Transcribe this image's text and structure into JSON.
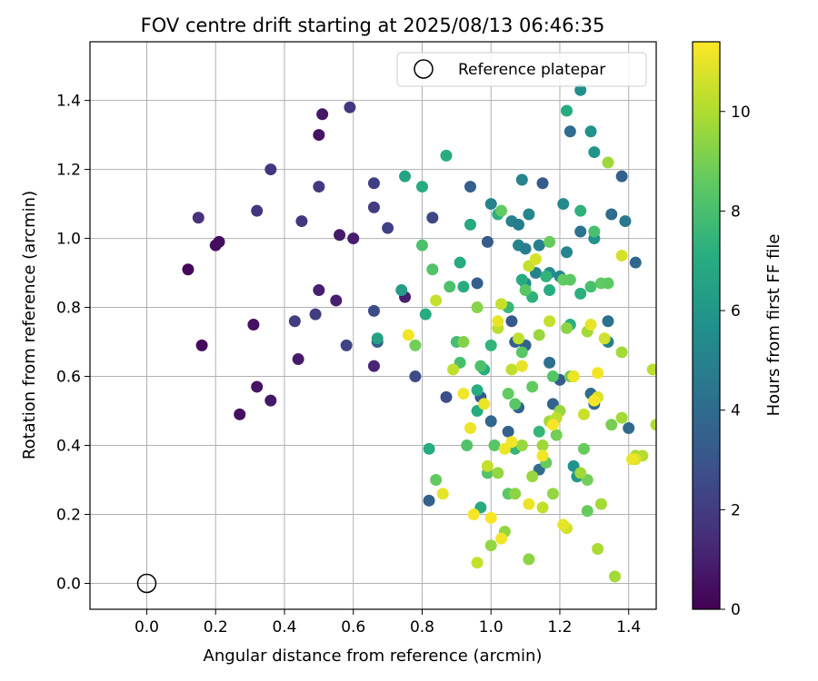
{
  "chart_data": {
    "type": "scatter",
    "title": "FOV centre drift starting at 2025/08/13 06:46:35",
    "xlabel": "Angular distance from reference (arcmin)",
    "ylabel": "Rotation from reference (arcmin)",
    "xlim": [
      -0.165,
      1.48
    ],
    "ylim": [
      -0.075,
      1.57
    ],
    "x_ticks": [
      0.0,
      0.2,
      0.4,
      0.6,
      0.8,
      1.0,
      1.2,
      1.4
    ],
    "x_tick_labels": [
      "0.0",
      "0.2",
      "0.4",
      "0.6",
      "0.8",
      "1.0",
      "1.2",
      "1.4"
    ],
    "y_ticks": [
      0.0,
      0.2,
      0.4,
      0.6,
      0.8,
      1.0,
      1.2,
      1.4
    ],
    "y_tick_labels": [
      "0.0",
      "0.2",
      "0.4",
      "0.6",
      "0.8",
      "1.0",
      "1.2",
      "1.4"
    ],
    "grid": true,
    "legend": {
      "placement": "upper-right",
      "entries": [
        "Reference platepar"
      ]
    },
    "reference_point": {
      "x": 0.0,
      "y": 0.0
    },
    "colorbar": {
      "label": "Hours from first FF file",
      "colormap": "viridis",
      "range": [
        0,
        11.4
      ],
      "ticks": [
        0,
        2,
        4,
        6,
        8,
        10
      ],
      "tick_labels": [
        "0",
        "2",
        "4",
        "6",
        "8",
        "10"
      ]
    },
    "points": [
      [
        0.12,
        0.91,
        0.2
      ],
      [
        0.16,
        0.69,
        0.3
      ],
      [
        0.2,
        0.98,
        0.4
      ],
      [
        0.21,
        0.99,
        0.4
      ],
      [
        0.27,
        0.49,
        0.5
      ],
      [
        0.31,
        0.75,
        0.5
      ],
      [
        0.32,
        0.57,
        0.6
      ],
      [
        0.36,
        0.53,
        0.7
      ],
      [
        0.44,
        0.65,
        0.8
      ],
      [
        0.5,
        1.3,
        0.6
      ],
      [
        0.51,
        1.36,
        0.7
      ],
      [
        0.56,
        1.01,
        0.8
      ],
      [
        0.6,
        1.0,
        0.9
      ],
      [
        0.5,
        0.85,
        1.0
      ],
      [
        0.55,
        0.82,
        1.0
      ],
      [
        0.66,
        0.63,
        1.2
      ],
      [
        0.75,
        0.83,
        1.0
      ],
      [
        0.15,
        1.06,
        1.6
      ],
      [
        0.32,
        1.08,
        1.7
      ],
      [
        0.36,
        1.2,
        1.8
      ],
      [
        0.45,
        1.05,
        1.8
      ],
      [
        0.5,
        1.15,
        1.9
      ],
      [
        0.59,
        1.38,
        1.8
      ],
      [
        0.43,
        0.76,
        2.0
      ],
      [
        0.49,
        0.78,
        2.0
      ],
      [
        0.66,
        1.16,
        2.1
      ],
      [
        0.66,
        1.09,
        2.0
      ],
      [
        0.7,
        1.03,
        2.2
      ],
      [
        0.58,
        0.69,
        2.3
      ],
      [
        0.66,
        0.79,
        2.6
      ],
      [
        0.78,
        0.6,
        2.6
      ],
      [
        0.83,
        1.06,
        2.4
      ],
      [
        0.87,
        0.54,
        2.7
      ],
      [
        0.67,
        0.7,
        3.3
      ],
      [
        0.82,
        0.24,
        3.5
      ],
      [
        0.94,
        1.15,
        3.4
      ],
      [
        0.96,
        0.87,
        3.4
      ],
      [
        0.97,
        0.54,
        3.2
      ],
      [
        0.99,
        0.99,
        3.3
      ],
      [
        1.0,
        0.47,
        3.8
      ],
      [
        1.05,
        0.44,
        3.5
      ],
      [
        1.06,
        0.76,
        3.2
      ],
      [
        1.07,
        0.7,
        3.5
      ],
      [
        1.08,
        0.51,
        3.6
      ],
      [
        1.1,
        0.69,
        3.6
      ],
      [
        1.14,
        0.33,
        4.0
      ],
      [
        1.15,
        1.16,
        3.3
      ],
      [
        1.17,
        0.64,
        4.2
      ],
      [
        1.18,
        0.52,
        3.7
      ],
      [
        1.2,
        0.59,
        3.2
      ],
      [
        1.23,
        1.31,
        4.0
      ],
      [
        1.26,
        1.02,
        4.3
      ],
      [
        1.29,
        0.55,
        4.0
      ],
      [
        1.3,
        0.52,
        4.0
      ],
      [
        1.34,
        0.76,
        4.2
      ],
      [
        1.35,
        1.07,
        4.0
      ],
      [
        1.38,
        1.18,
        3.5
      ],
      [
        1.39,
        1.05,
        4.5
      ],
      [
        1.4,
        0.45,
        3.9
      ],
      [
        1.42,
        0.93,
        3.8
      ],
      [
        1.34,
        0.7,
        4.9
      ],
      [
        1.0,
        1.1,
        5.0
      ],
      [
        1.06,
        1.05,
        5.0
      ],
      [
        1.08,
        1.04,
        4.8
      ],
      [
        1.09,
        1.17,
        5.1
      ],
      [
        1.11,
        1.07,
        5.2
      ],
      [
        1.08,
        0.98,
        5.1
      ],
      [
        1.1,
        0.97,
        4.8
      ],
      [
        1.1,
        0.87,
        5.5
      ],
      [
        1.13,
        0.9,
        5.0
      ],
      [
        1.14,
        0.98,
        4.9
      ],
      [
        1.17,
        0.9,
        5.5
      ],
      [
        1.2,
        0.89,
        5.3
      ],
      [
        1.21,
        1.1,
        5.3
      ],
      [
        1.22,
        0.96,
        5.2
      ],
      [
        1.26,
        1.43,
        5.6
      ],
      [
        1.29,
        1.31,
        5.8
      ],
      [
        1.3,
        1.25,
        5.9
      ],
      [
        1.3,
        1.0,
        5.8
      ],
      [
        1.24,
        0.34,
        5.8
      ],
      [
        1.25,
        0.31,
        6.0
      ],
      [
        0.74,
        0.85,
        6.3
      ],
      [
        0.67,
        0.71,
        6.5
      ],
      [
        0.75,
        1.18,
        6.6
      ],
      [
        0.8,
        1.15,
        7.0
      ],
      [
        0.87,
        1.24,
        7.1
      ],
      [
        0.81,
        0.78,
        7.0
      ],
      [
        0.82,
        0.39,
        7.0
      ],
      [
        0.91,
        0.93,
        6.9
      ],
      [
        0.92,
        0.86,
        7.0
      ],
      [
        0.94,
        1.04,
        6.9
      ],
      [
        0.96,
        0.56,
        7.0
      ],
      [
        0.96,
        0.5,
        7.0
      ],
      [
        0.97,
        0.22,
        7.0
      ],
      [
        0.98,
        0.62,
        7.1
      ],
      [
        1.0,
        0.69,
        7.4
      ],
      [
        1.02,
        1.07,
        7.2
      ],
      [
        1.05,
        0.8,
        7.6
      ],
      [
        1.07,
        0.39,
        7.5
      ],
      [
        1.09,
        0.88,
        7.0
      ],
      [
        1.12,
        0.83,
        7.3
      ],
      [
        1.14,
        0.44,
        7.5
      ],
      [
        1.16,
        0.89,
        7.4
      ],
      [
        1.17,
        0.85,
        7.1
      ],
      [
        1.22,
        1.37,
        7.0
      ],
      [
        1.23,
        0.75,
        7.1
      ],
      [
        1.26,
        0.84,
        7.2
      ],
      [
        1.26,
        1.08,
        7.3
      ],
      [
        1.29,
        0.86,
        8.0
      ],
      [
        1.3,
        1.02,
        8.0
      ],
      [
        0.8,
        0.98,
        8.1
      ],
      [
        0.83,
        0.91,
        8.2
      ],
      [
        0.88,
        0.86,
        8.1
      ],
      [
        0.9,
        0.7,
        7.9
      ],
      [
        0.91,
        0.64,
        8.0
      ],
      [
        0.93,
        0.4,
        8.2
      ],
      [
        0.97,
        0.63,
        8.1
      ],
      [
        0.99,
        0.32,
        8.2
      ],
      [
        1.01,
        0.4,
        8.4
      ],
      [
        1.03,
        1.08,
        8.6
      ],
      [
        1.05,
        0.26,
        8.5
      ],
      [
        1.05,
        0.55,
        8.6
      ],
      [
        1.07,
        0.52,
        8.4
      ],
      [
        1.09,
        0.67,
        8.4
      ],
      [
        1.1,
        0.85,
        8.4
      ],
      [
        1.12,
        0.57,
        8.6
      ],
      [
        1.16,
        0.35,
        8.7
      ],
      [
        1.17,
        0.99,
        8.7
      ],
      [
        1.18,
        0.6,
        8.3
      ],
      [
        1.19,
        0.43,
        8.9
      ],
      [
        1.21,
        0.88,
        8.6
      ],
      [
        1.23,
        0.88,
        8.5
      ],
      [
        1.23,
        0.6,
        8.8
      ],
      [
        1.27,
        0.39,
        8.7
      ],
      [
        1.28,
        0.3,
        8.9
      ],
      [
        1.28,
        0.21,
        8.7
      ],
      [
        1.32,
        0.87,
        8.6
      ],
      [
        1.34,
        0.87,
        8.5
      ],
      [
        1.35,
        0.46,
        9.0
      ],
      [
        0.78,
        0.69,
        8.9
      ],
      [
        0.84,
        0.3,
        8.6
      ],
      [
        0.92,
        0.7,
        9.2
      ],
      [
        0.96,
        0.8,
        9.3
      ],
      [
        1.0,
        0.11,
        9.5
      ],
      [
        1.02,
        0.32,
        9.5
      ],
      [
        1.04,
        0.15,
        9.5
      ],
      [
        1.07,
        0.26,
        9.4
      ],
      [
        1.09,
        0.4,
        9.6
      ],
      [
        1.11,
        0.07,
        9.4
      ],
      [
        1.12,
        0.31,
        9.6
      ],
      [
        1.14,
        0.72,
        9.6
      ],
      [
        1.15,
        0.4,
        9.7
      ],
      [
        1.17,
        0.47,
        9.8
      ],
      [
        1.18,
        0.26,
        9.5
      ],
      [
        1.2,
        0.5,
        9.6
      ],
      [
        1.22,
        0.74,
        9.4
      ],
      [
        1.24,
        0.6,
        9.6
      ],
      [
        1.26,
        0.32,
        9.7
      ],
      [
        1.28,
        0.73,
        9.8
      ],
      [
        1.31,
        0.1,
        9.9
      ],
      [
        1.32,
        0.23,
        9.8
      ],
      [
        1.34,
        1.22,
        9.7
      ],
      [
        1.36,
        0.02,
        9.8
      ],
      [
        1.38,
        0.48,
        9.8
      ],
      [
        1.38,
        0.67,
        9.8
      ],
      [
        1.42,
        0.37,
        9.9
      ],
      [
        1.44,
        0.37,
        10.1
      ],
      [
        1.47,
        0.62,
        10.2
      ],
      [
        1.48,
        0.46,
        10.0
      ],
      [
        0.84,
        0.82,
        10.4
      ],
      [
        0.89,
        0.62,
        10.3
      ],
      [
        0.96,
        0.06,
        10.4
      ],
      [
        0.99,
        0.34,
        10.4
      ],
      [
        1.02,
        0.74,
        10.2
      ],
      [
        1.03,
        0.81,
        10.4
      ],
      [
        1.06,
        0.62,
        10.3
      ],
      [
        1.08,
        0.71,
        10.3
      ],
      [
        1.11,
        0.92,
        10.4
      ],
      [
        1.13,
        0.94,
        10.7
      ],
      [
        1.15,
        0.22,
        10.3
      ],
      [
        1.17,
        0.76,
        10.4
      ],
      [
        1.19,
        0.48,
        10.3
      ],
      [
        1.22,
        0.16,
        10.6
      ],
      [
        1.27,
        0.49,
        10.5
      ],
      [
        1.31,
        0.54,
        10.8
      ],
      [
        1.33,
        0.71,
        10.6
      ],
      [
        1.38,
        0.95,
        10.7
      ],
      [
        1.42,
        0.36,
        10.8
      ],
      [
        0.76,
        0.72,
        11.2
      ],
      [
        0.86,
        0.26,
        11.0
      ],
      [
        0.92,
        0.55,
        11.2
      ],
      [
        0.94,
        0.45,
        11.1
      ],
      [
        0.95,
        0.2,
        11.3
      ],
      [
        0.98,
        0.52,
        11.1
      ],
      [
        1.0,
        0.19,
        11.3
      ],
      [
        1.02,
        0.76,
        11.0
      ],
      [
        1.03,
        0.13,
        11.2
      ],
      [
        1.04,
        0.39,
        11.1
      ],
      [
        1.06,
        0.41,
        11.2
      ],
      [
        1.09,
        0.63,
        11.0
      ],
      [
        1.11,
        0.23,
        11.1
      ],
      [
        1.15,
        0.37,
        11.2
      ],
      [
        1.18,
        0.46,
        11.3
      ],
      [
        1.21,
        0.17,
        11.0
      ],
      [
        1.24,
        0.6,
        11.1
      ],
      [
        1.29,
        0.75,
        11.0
      ],
      [
        1.3,
        0.53,
        11.3
      ],
      [
        1.31,
        0.61,
        11.2
      ],
      [
        1.41,
        0.36,
        11.1
      ]
    ]
  }
}
